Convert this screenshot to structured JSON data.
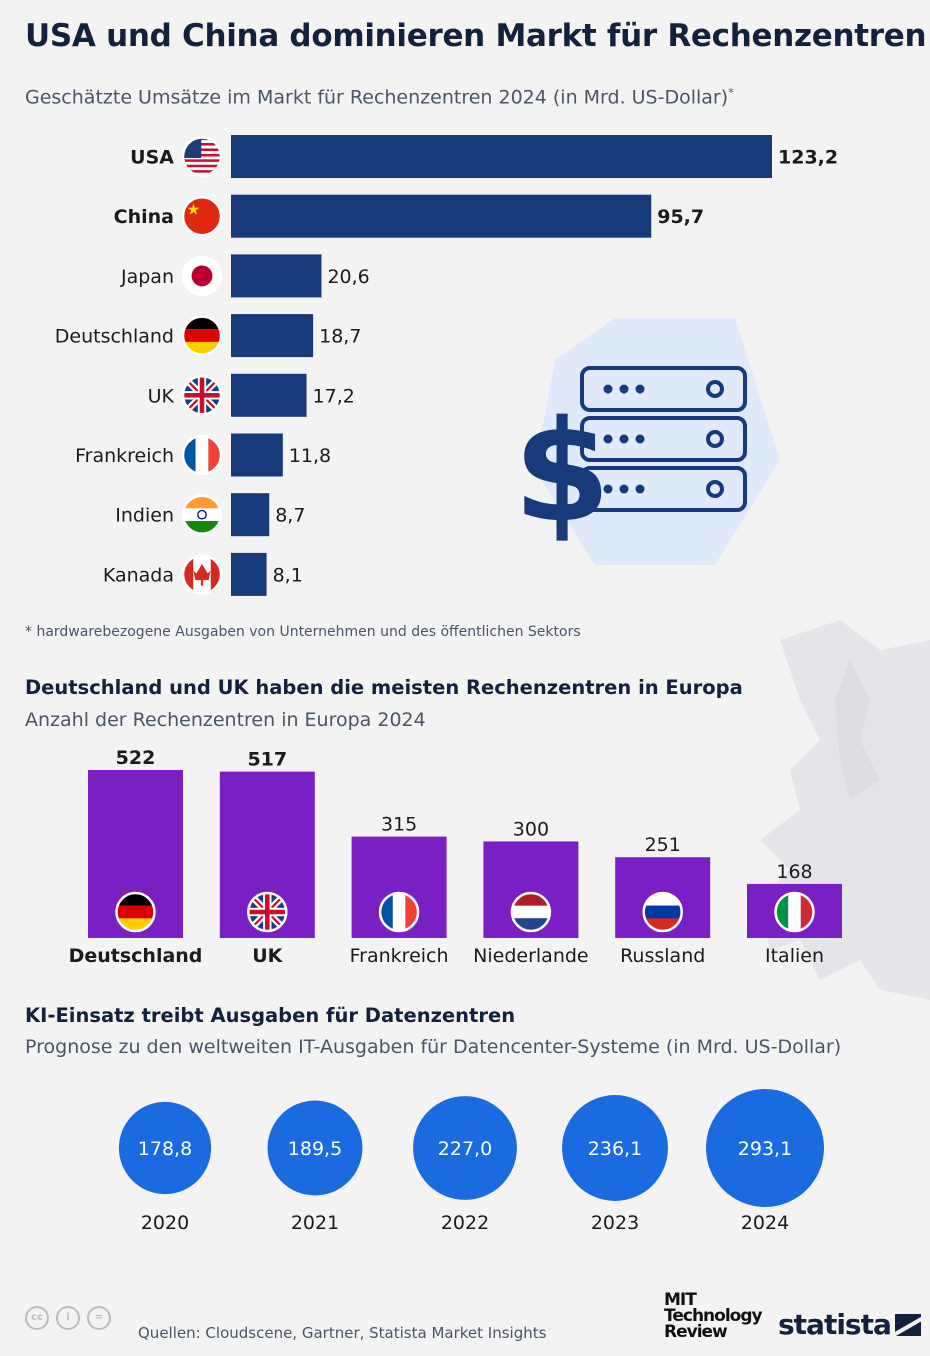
{
  "title": "USA und China dominieren Markt für Rechenzentren",
  "section1": {
    "subtitle": "Geschätzte Umsätze im Markt für Rechenzentren 2024 (in Mrd. US-Dollar)",
    "subtitle_mark": "*",
    "footnote": "* hardwarebezogene Ausgaben von Unternehmen und des öffentlichen Sektors"
  },
  "section2": {
    "title": "Deutschland und UK haben die meisten Rechenzentren in Europa",
    "subtitle": "Anzahl der Rechenzentren in Europa 2024"
  },
  "section3": {
    "title": "KI-Einsatz treibt Ausgaben für Datenzentren",
    "subtitle": "Prognose zu den weltweiten IT-Ausgaben für Datencenter-Systeme (in Mrd. US-Dollar)"
  },
  "colors": {
    "navy": "#163a7a",
    "purple": "#7a1fc4",
    "blue": "#1a6be0",
    "background": "#f3f3f3"
  },
  "chart_data": [
    {
      "type": "bar",
      "orientation": "horizontal",
      "categories": [
        "USA",
        "China",
        "Japan",
        "Deutschland",
        "UK",
        "Frankreich",
        "Indien",
        "Kanada"
      ],
      "values": [
        123.2,
        95.7,
        20.6,
        18.7,
        17.2,
        11.8,
        8.7,
        8.1
      ],
      "value_labels": [
        "123,2",
        "95,7",
        "20,6",
        "18,7",
        "17,2",
        "11,8",
        "8,7",
        "8,1"
      ],
      "flags": [
        "us",
        "cn",
        "jp",
        "de",
        "uk",
        "fr",
        "in",
        "ca"
      ],
      "bold": [
        true,
        true,
        false,
        false,
        false,
        false,
        false,
        false
      ],
      "xlim": [
        0,
        123.2
      ]
    },
    {
      "type": "bar",
      "orientation": "vertical",
      "categories": [
        "Deutschland",
        "UK",
        "Frankreich",
        "Niederlande",
        "Russland",
        "Italien"
      ],
      "values": [
        522,
        517,
        315,
        300,
        251,
        168
      ],
      "value_labels": [
        "522",
        "517",
        "315",
        "300",
        "251",
        "168"
      ],
      "flags": [
        "de",
        "uk",
        "fr",
        "nl",
        "ru",
        "it"
      ],
      "bold": [
        true,
        true,
        false,
        false,
        false,
        false
      ],
      "ylim": [
        0,
        522
      ]
    },
    {
      "type": "bubble",
      "categories": [
        "2020",
        "2021",
        "2022",
        "2023",
        "2024"
      ],
      "values": [
        178.8,
        189.5,
        227.0,
        236.1,
        293.1
      ],
      "value_labels": [
        "178,8",
        "189,5",
        "227,0",
        "236,1",
        "293,1"
      ]
    }
  ],
  "footer": {
    "sources": "Quellen: Cloudscene, Gartner, Statista Market Insights",
    "mit_logo": [
      "MIT",
      "Technology",
      "Review"
    ],
    "statista_logo": "statista",
    "license_icons": [
      "cc-icon",
      "by-icon",
      "nd-icon"
    ]
  }
}
